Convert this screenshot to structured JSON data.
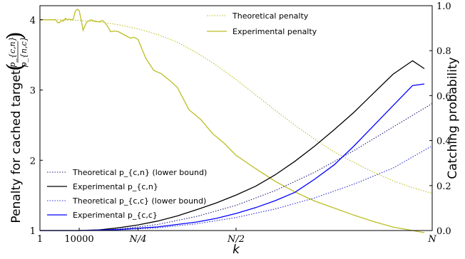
{
  "chart_data": {
    "type": "line",
    "title": "",
    "xlabel": "k",
    "ylabel_left": "Penalty for cached target",
    "ylabel_left_fraction": {
      "numerator": "p_{c,n}",
      "denominator": "p_{n,c}"
    },
    "ylabel_right": "Catching probability",
    "x_categories": [
      "1",
      "10000",
      "N/4",
      "N/2",
      "N"
    ],
    "xlim": [
      0,
      1
    ],
    "ylim_left": [
      1,
      4.2
    ],
    "ylim_right": [
      0,
      1.0
    ],
    "left_ticks": [
      "1",
      "2",
      "3",
      "4"
    ],
    "right_ticks": [
      "0.0",
      "0.2",
      "0.4",
      "0.6",
      "0.8",
      "1.0"
    ],
    "grid": false,
    "series": [
      {
        "name": "Theoretical penalty",
        "axis": "left",
        "color": "#bcbd22",
        "style": "dotted",
        "legend": "top",
        "x": [
          0,
          0.05,
          0.1,
          0.15,
          0.2,
          0.25,
          0.3,
          0.35,
          0.4,
          0.45,
          0.5,
          0.55,
          0.6,
          0.65,
          0.7,
          0.75,
          0.8,
          0.85,
          0.9,
          0.95,
          1.0
        ],
        "y": [
          4.0,
          4.0,
          3.99,
          3.97,
          3.93,
          3.87,
          3.79,
          3.68,
          3.53,
          3.35,
          3.15,
          2.93,
          2.71,
          2.5,
          2.3,
          2.12,
          1.97,
          1.83,
          1.71,
          1.61,
          1.53
        ]
      },
      {
        "name": "Experimental penalty",
        "axis": "left",
        "color": "#bcbd22",
        "style": "solid",
        "legend": "top",
        "x": [
          0,
          0.04,
          0.045,
          0.05,
          0.055,
          0.06,
          0.065,
          0.07,
          0.075,
          0.08,
          0.085,
          0.09,
          0.095,
          0.1,
          0.105,
          0.11,
          0.115,
          0.12,
          0.13,
          0.14,
          0.15,
          0.16,
          0.17,
          0.18,
          0.19,
          0.2,
          0.21,
          0.22,
          0.23,
          0.24,
          0.25,
          0.27,
          0.29,
          0.31,
          0.33,
          0.35,
          0.38,
          0.41,
          0.44,
          0.47,
          0.5,
          0.55,
          0.6,
          0.65,
          0.7,
          0.75,
          0.8,
          0.85,
          0.9,
          0.95,
          0.98
        ],
        "y": [
          4.0,
          4.0,
          3.96,
          3.96,
          3.99,
          3.98,
          4.02,
          4.0,
          4.01,
          4.0,
          4.01,
          4.12,
          4.15,
          4.13,
          4.0,
          3.85,
          3.92,
          3.97,
          4.0,
          3.98,
          3.97,
          3.99,
          3.93,
          3.83,
          3.84,
          3.83,
          3.8,
          3.77,
          3.74,
          3.75,
          3.72,
          3.45,
          3.28,
          3.23,
          3.14,
          3.04,
          2.72,
          2.58,
          2.38,
          2.24,
          2.07,
          1.88,
          1.7,
          1.55,
          1.42,
          1.32,
          1.22,
          1.13,
          1.05,
          1.0,
          0.97
        ]
      },
      {
        "name": "Theoretical p_{c,n} (lower bound)",
        "axis": "right",
        "color": "#1f1f7a",
        "style": "dotted",
        "legend": "bottom",
        "x": [
          0,
          0.1,
          0.2,
          0.3,
          0.4,
          0.5,
          0.6,
          0.7,
          0.8,
          0.9,
          1.0
        ],
        "y": [
          0.0,
          0.0,
          0.006,
          0.027,
          0.063,
          0.112,
          0.178,
          0.259,
          0.355,
          0.46,
          0.565
        ]
      },
      {
        "name": "Experimental p_{c,n}",
        "axis": "right",
        "color": "#000000",
        "style": "solid",
        "legend": "bottom",
        "x": [
          0,
          0.1,
          0.15,
          0.2,
          0.25,
          0.3,
          0.35,
          0.4,
          0.45,
          0.5,
          0.55,
          0.6,
          0.65,
          0.7,
          0.75,
          0.8,
          0.85,
          0.9,
          0.95,
          0.98
        ],
        "y": [
          0.0,
          0.0,
          0.003,
          0.012,
          0.025,
          0.042,
          0.065,
          0.093,
          0.123,
          0.158,
          0.197,
          0.248,
          0.308,
          0.375,
          0.448,
          0.525,
          0.61,
          0.695,
          0.755,
          0.72
        ]
      },
      {
        "name": "Theoretical p_{c,c} (lower bound)",
        "axis": "right",
        "color": "#2b2bd9",
        "style": "dotted",
        "legend": "bottom",
        "x": [
          0,
          0.1,
          0.2,
          0.3,
          0.4,
          0.5,
          0.6,
          0.7,
          0.8,
          0.9,
          1.0
        ],
        "y": [
          0.0,
          0.0,
          0.003,
          0.012,
          0.03,
          0.058,
          0.096,
          0.145,
          0.206,
          0.278,
          0.377
        ]
      },
      {
        "name": "Experimental p_{c,c}",
        "axis": "right",
        "color": "#0000ff",
        "style": "solid",
        "legend": "bottom",
        "x": [
          0,
          0.1,
          0.2,
          0.3,
          0.4,
          0.45,
          0.5,
          0.55,
          0.6,
          0.65,
          0.7,
          0.75,
          0.8,
          0.85,
          0.9,
          0.95,
          0.98
        ],
        "y": [
          0.0,
          0.0,
          0.004,
          0.016,
          0.038,
          0.054,
          0.076,
          0.102,
          0.133,
          0.17,
          0.228,
          0.292,
          0.375,
          0.465,
          0.555,
          0.645,
          0.652
        ]
      }
    ]
  }
}
